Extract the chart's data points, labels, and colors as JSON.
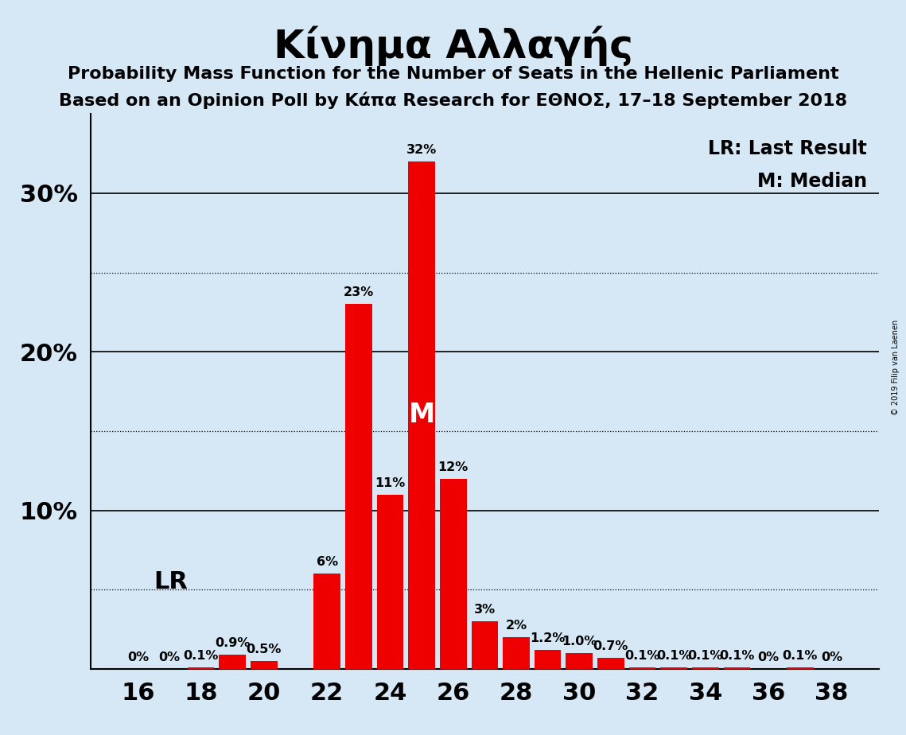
{
  "title": "Κίνημα Αλλαγής",
  "subtitle1": "Probability Mass Function for the Number of Seats in the Hellenic Parliament",
  "subtitle2": "Based on an Opinion Poll by Κάπα Research for ΕΘΝΟΣ, 17–18 September 2018",
  "watermark": "© 2019 Filip van Laenen",
  "seats": [
    16,
    17,
    18,
    19,
    20,
    21,
    22,
    23,
    24,
    25,
    26,
    27,
    28,
    29,
    30,
    31,
    32,
    33,
    34,
    35,
    36,
    37,
    38
  ],
  "probabilities": [
    0.0,
    0.0,
    0.1,
    0.9,
    0.5,
    0.0,
    6.0,
    23.0,
    11.0,
    32.0,
    12.0,
    3.0,
    2.0,
    1.2,
    1.0,
    0.7,
    0.1,
    0.1,
    0.1,
    0.1,
    0.0,
    0.1,
    0.0
  ],
  "bar_color": "#EE0000",
  "background_color": "#D6E8F5",
  "lr_seat": 17,
  "median_seat": 25,
  "yticks": [
    10,
    20,
    30
  ],
  "ytick_labels": [
    "10%",
    "20%",
    "30%"
  ],
  "solid_lines": [
    10,
    20,
    30
  ],
  "dotted_lines": [
    5,
    15,
    25
  ],
  "xlabel_seats": [
    16,
    18,
    20,
    22,
    24,
    26,
    28,
    30,
    32,
    34,
    36,
    38
  ],
  "bar_labels": {
    "16": "0%",
    "17": "0%",
    "18": "0.1%",
    "19": "0.9%",
    "20": "0.5%",
    "21": "",
    "22": "6%",
    "23": "23%",
    "24": "11%",
    "25": "32%",
    "26": "12%",
    "27": "3%",
    "28": "2%",
    "29": "1.2%",
    "30": "1.0%",
    "31": "0.7%",
    "32": "0.1%",
    "33": "0.1%",
    "34": "0.1%",
    "35": "0.1%",
    "36": "0%",
    "37": "0.1%",
    "38": "0%"
  },
  "title_fontsize": 36,
  "subtitle_fontsize": 16,
  "tick_fontsize": 22,
  "bar_label_fontsize": 11.5,
  "legend_fontsize": 17,
  "lr_label": "LR",
  "median_label": "M",
  "ylim_max": 35
}
